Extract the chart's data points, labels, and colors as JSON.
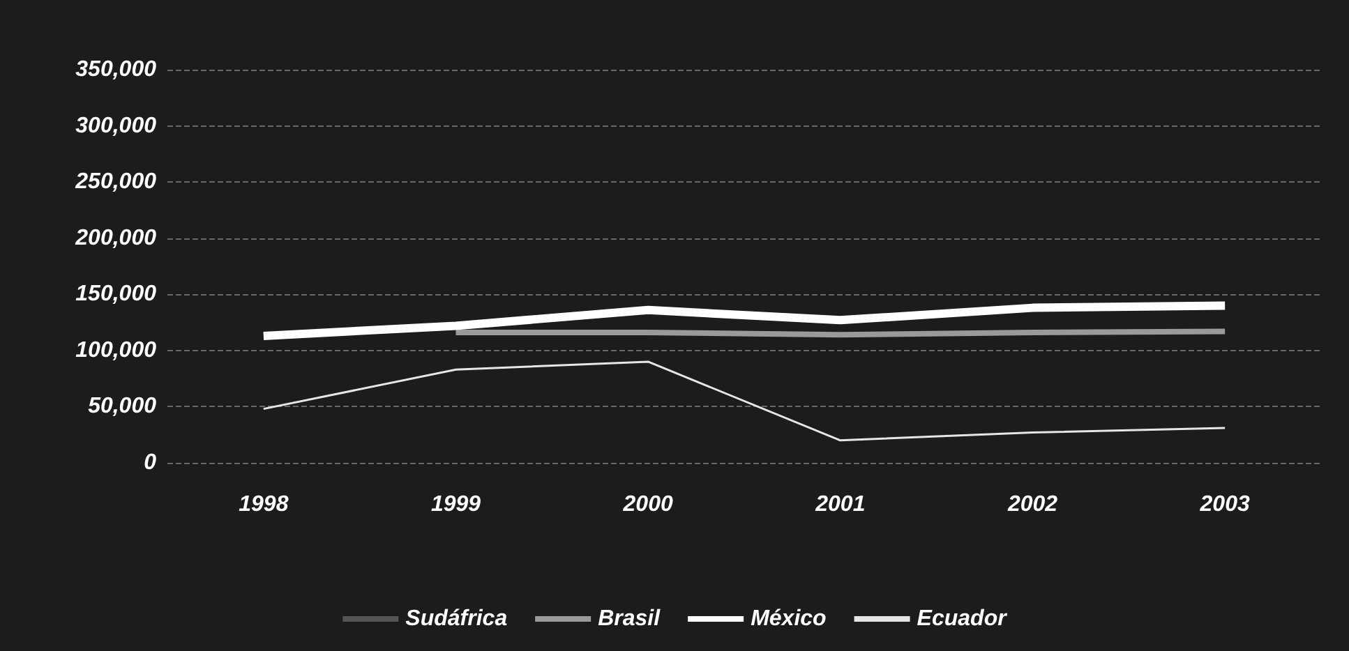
{
  "chart_data": {
    "type": "line",
    "categories": [
      "1998",
      "1999",
      "2000",
      "2001",
      "2002",
      "2003"
    ],
    "series": [
      {
        "name": "Sudáfrica",
        "color": "#555555",
        "values": [
          null,
          null,
          null,
          null,
          null,
          null
        ]
      },
      {
        "name": "Brasil",
        "color": "#9a9a9a",
        "values": [
          null,
          116000,
          116000,
          114000,
          116000,
          117000
        ]
      },
      {
        "name": "México",
        "color": "#ffffff",
        "values": [
          113000,
          122000,
          136000,
          127000,
          138000,
          140000
        ]
      },
      {
        "name": "Ecuador",
        "color": "#e6e6e6",
        "values": [
          48000,
          83000,
          90000,
          20000,
          27000,
          31000
        ]
      }
    ],
    "ylim": [
      0,
      350000
    ],
    "yticks": [
      0,
      {
        "value": 50000,
        "label": "50,000"
      },
      {
        "value": 100000,
        "label": "100,000"
      },
      {
        "value": 150000,
        "label": "150,000"
      },
      {
        "value": 200000,
        "label": "200,000"
      },
      {
        "value": 250000,
        "label": "250,000"
      },
      {
        "value": 300000,
        "label": "300,000"
      },
      {
        "value": 350000,
        "label": "350,000"
      }
    ],
    "grid": "y",
    "legend": "bottom",
    "marker": "none"
  }
}
